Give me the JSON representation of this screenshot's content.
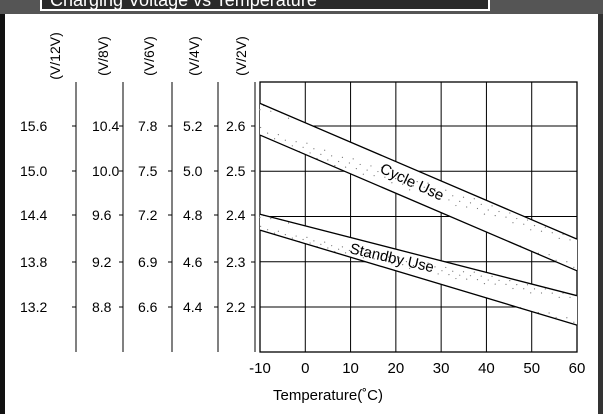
{
  "header": {
    "text": "Charging Voltage vs Temperature"
  },
  "chart_data": {
    "type": "line",
    "xlabel": "Temperature(˚C)",
    "xlim": [
      -10,
      60
    ],
    "x_ticks": [
      -10,
      0,
      10,
      20,
      30,
      40,
      50,
      60
    ],
    "ylim": [
      2.1,
      2.7
    ],
    "voltage_axes": [
      {
        "label": "(V/12V)",
        "ticks": [
          "15.6",
          "15.0",
          "14.4",
          "13.8",
          "13.2"
        ]
      },
      {
        "label": "(V/8V)",
        "ticks": [
          "10.4",
          "10.0",
          "9.6",
          "9.2",
          "8.8"
        ]
      },
      {
        "label": "(V/6V)",
        "ticks": [
          "7.8",
          "7.5",
          "7.2",
          "6.9",
          "6.6"
        ]
      },
      {
        "label": "(V/4V)",
        "ticks": [
          "5.2",
          "5.0",
          "4.8",
          "4.6",
          "4.4"
        ]
      },
      {
        "label": "(V/2V)",
        "ticks": [
          "2.6",
          "2.5",
          "2.4",
          "2.3",
          "2.2"
        ]
      }
    ],
    "y_values": [
      2.6,
      2.5,
      2.4,
      2.3,
      2.2
    ],
    "bands": [
      {
        "name": "Cycle Use",
        "upper": [
          [
            -10,
            2.65
          ],
          [
            60,
            2.35
          ]
        ],
        "lower": [
          [
            -10,
            2.58
          ],
          [
            60,
            2.28
          ]
        ]
      },
      {
        "name": "Standby Use",
        "upper": [
          [
            -10,
            2.405
          ],
          [
            60,
            2.225
          ]
        ],
        "lower": [
          [
            -10,
            2.37
          ],
          [
            60,
            2.16
          ]
        ]
      }
    ],
    "grid": true
  }
}
